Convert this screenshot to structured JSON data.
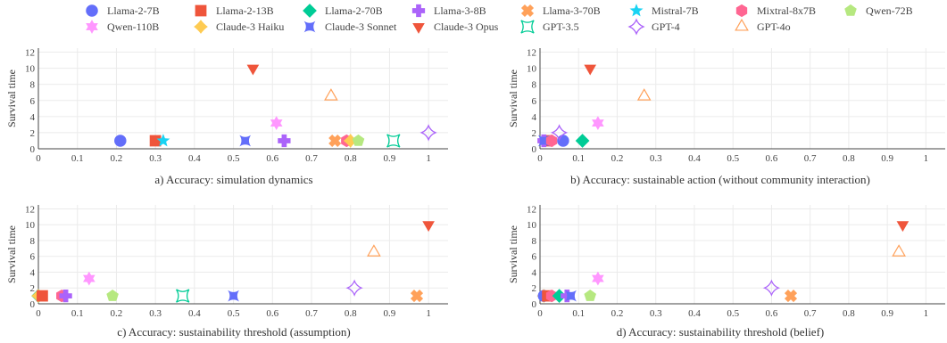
{
  "legend": [
    {
      "name": "Llama-2-7B",
      "color": "#636efa",
      "marker": "circle"
    },
    {
      "name": "Llama-2-13B",
      "color": "#ef553b",
      "marker": "square"
    },
    {
      "name": "Llama-2-70B",
      "color": "#00cc96",
      "marker": "diamond"
    },
    {
      "name": "Llama-3-8B",
      "color": "#ab63fa",
      "marker": "cross"
    },
    {
      "name": "Llama-3-70B",
      "color": "#ffa15a",
      "marker": "x"
    },
    {
      "name": "Mistral-7B",
      "color": "#19d3f3",
      "marker": "star"
    },
    {
      "name": "Mixtral-8x7B",
      "color": "#ff6692",
      "marker": "hexagon"
    },
    {
      "name": "Qwen-72B",
      "color": "#b6e880",
      "marker": "pentagon"
    },
    {
      "name": "Qwen-110B",
      "color": "#ff97ff",
      "marker": "hexagram"
    },
    {
      "name": "Claude-3 Haiku",
      "color": "#fecb52",
      "marker": "star-diamond"
    },
    {
      "name": "Claude-3 Sonnet",
      "color": "#636efa",
      "marker": "hourglass"
    },
    {
      "name": "Claude-3 Opus",
      "color": "#ef553b",
      "marker": "triangle-down"
    },
    {
      "name": "GPT-3.5",
      "color": "#00cc96",
      "marker": "square-open-star"
    },
    {
      "name": "GPT-4",
      "color": "#ab63fa",
      "marker": "diamond-open-star"
    },
    {
      "name": "GPT-4o",
      "color": "#ffa15a",
      "marker": "triangle-open"
    }
  ],
  "chart_data": [
    {
      "type": "scatter",
      "caption": "a) Accuracy: simulation dynamics",
      "ylabel": "Survival time",
      "xlim": [
        0,
        1.05
      ],
      "ylim": [
        0,
        12.5
      ],
      "xticks": [
        0,
        0.1,
        0.2,
        0.3,
        0.4,
        0.5,
        0.6,
        0.7,
        0.8,
        0.9,
        1
      ],
      "yticks": [
        0,
        2,
        4,
        6,
        8,
        10,
        12
      ],
      "points": [
        {
          "model": "Llama-2-7B",
          "x": 0.21,
          "y": 1
        },
        {
          "model": "Llama-2-13B",
          "x": 0.3,
          "y": 1
        },
        {
          "model": "Mistral-7B",
          "x": 0.32,
          "y": 1
        },
        {
          "model": "Claude-3 Sonnet",
          "x": 0.53,
          "y": 1
        },
        {
          "model": "Claude-3 Opus",
          "x": 0.55,
          "y": 10
        },
        {
          "model": "Qwen-110B",
          "x": 0.61,
          "y": 3.2
        },
        {
          "model": "Llama-3-8B",
          "x": 0.63,
          "y": 1
        },
        {
          "model": "GPT-4o",
          "x": 0.75,
          "y": 6.5
        },
        {
          "model": "Llama-3-70B",
          "x": 0.76,
          "y": 1
        },
        {
          "model": "Mixtral-8x7B",
          "x": 0.79,
          "y": 1
        },
        {
          "model": "Claude-3 Haiku",
          "x": 0.8,
          "y": 1
        },
        {
          "model": "Qwen-72B",
          "x": 0.82,
          "y": 1
        },
        {
          "model": "GPT-3.5",
          "x": 0.91,
          "y": 1
        },
        {
          "model": "GPT-4",
          "x": 1.0,
          "y": 2
        }
      ]
    },
    {
      "type": "scatter",
      "caption": "b) Accuracy: sustainable action (without community interaction)",
      "ylabel": "Survival time",
      "xlim": [
        0,
        1.05
      ],
      "ylim": [
        0,
        12.5
      ],
      "xticks": [
        0,
        0.1,
        0.2,
        0.3,
        0.4,
        0.5,
        0.6,
        0.7,
        0.8,
        0.9,
        1
      ],
      "yticks": [
        0,
        2,
        4,
        6,
        8,
        10,
        12
      ],
      "points": [
        {
          "model": "Llama-2-7B",
          "x": 0.06,
          "y": 1
        },
        {
          "model": "Llama-2-13B",
          "x": 0.02,
          "y": 1
        },
        {
          "model": "Llama-3-8B",
          "x": 0.01,
          "y": 1
        },
        {
          "model": "Claude-3 Sonnet",
          "x": 0.01,
          "y": 1
        },
        {
          "model": "Mixtral-8x7B",
          "x": 0.03,
          "y": 1
        },
        {
          "model": "GPT-4",
          "x": 0.05,
          "y": 2
        },
        {
          "model": "Llama-2-70B",
          "x": 0.11,
          "y": 1
        },
        {
          "model": "Claude-3 Opus",
          "x": 0.13,
          "y": 10
        },
        {
          "model": "Qwen-110B",
          "x": 0.15,
          "y": 3.2
        },
        {
          "model": "GPT-4o",
          "x": 0.27,
          "y": 6.5
        }
      ]
    },
    {
      "type": "scatter",
      "caption": "c) Accuracy: sustainability threshold (assumption)",
      "ylabel": "Survival time",
      "xlim": [
        0,
        1.05
      ],
      "ylim": [
        0,
        12.5
      ],
      "xticks": [
        0,
        0.1,
        0.2,
        0.3,
        0.4,
        0.5,
        0.6,
        0.7,
        0.8,
        0.9,
        1
      ],
      "yticks": [
        0,
        2,
        4,
        6,
        8,
        10,
        12
      ],
      "points": [
        {
          "model": "Llama-2-70B",
          "x": 0.0,
          "y": 1
        },
        {
          "model": "Claude-3 Haiku",
          "x": 0.0,
          "y": 1
        },
        {
          "model": "Llama-2-13B",
          "x": 0.01,
          "y": 1
        },
        {
          "model": "Mixtral-8x7B",
          "x": 0.06,
          "y": 1
        },
        {
          "model": "Llama-3-8B",
          "x": 0.07,
          "y": 1
        },
        {
          "model": "Qwen-110B",
          "x": 0.13,
          "y": 3.2
        },
        {
          "model": "Qwen-72B",
          "x": 0.19,
          "y": 1
        },
        {
          "model": "GPT-3.5",
          "x": 0.37,
          "y": 1
        },
        {
          "model": "Claude-3 Sonnet",
          "x": 0.5,
          "y": 1
        },
        {
          "model": "GPT-4",
          "x": 0.81,
          "y": 2
        },
        {
          "model": "GPT-4o",
          "x": 0.86,
          "y": 6.5
        },
        {
          "model": "Llama-3-70B",
          "x": 0.97,
          "y": 1
        },
        {
          "model": "Claude-3 Opus",
          "x": 1.0,
          "y": 10
        }
      ]
    },
    {
      "type": "scatter",
      "caption": "d) Accuracy: sustainability threshold (belief)",
      "ylabel": "Survival time",
      "xlim": [
        0,
        1.05
      ],
      "ylim": [
        0,
        12.5
      ],
      "xticks": [
        0,
        0.1,
        0.2,
        0.3,
        0.4,
        0.5,
        0.6,
        0.7,
        0.8,
        0.9,
        1
      ],
      "yticks": [
        0,
        2,
        4,
        6,
        8,
        10,
        12
      ],
      "points": [
        {
          "model": "Claude-3 Haiku",
          "x": 0.01,
          "y": 1
        },
        {
          "model": "Llama-2-7B",
          "x": 0.01,
          "y": 1
        },
        {
          "model": "Llama-2-13B",
          "x": 0.02,
          "y": 1
        },
        {
          "model": "Mixtral-8x7B",
          "x": 0.03,
          "y": 1
        },
        {
          "model": "Llama-2-70B",
          "x": 0.05,
          "y": 1
        },
        {
          "model": "Llama-3-8B",
          "x": 0.07,
          "y": 1
        },
        {
          "model": "Claude-3 Sonnet",
          "x": 0.08,
          "y": 1
        },
        {
          "model": "Qwen-72B",
          "x": 0.13,
          "y": 1
        },
        {
          "model": "Qwen-110B",
          "x": 0.15,
          "y": 3.2
        },
        {
          "model": "GPT-4",
          "x": 0.6,
          "y": 2
        },
        {
          "model": "Llama-3-70B",
          "x": 0.65,
          "y": 1
        },
        {
          "model": "GPT-4o",
          "x": 0.93,
          "y": 6.5
        },
        {
          "model": "Claude-3 Opus",
          "x": 0.94,
          "y": 10
        }
      ]
    }
  ]
}
